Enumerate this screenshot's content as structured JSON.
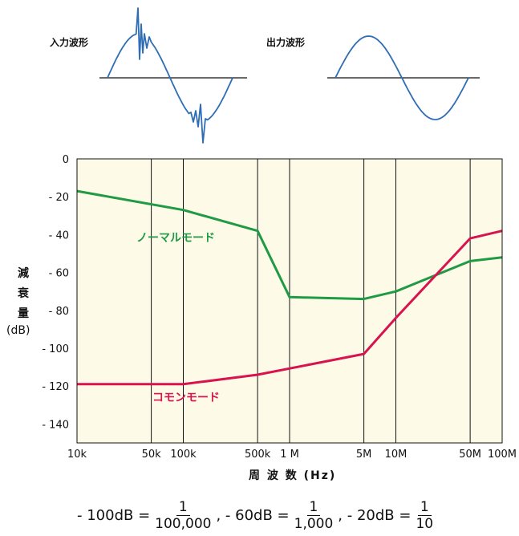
{
  "waveforms": {
    "input_label": "入力波形",
    "output_label": "出力波形"
  },
  "axis_labels": {
    "y_chars": [
      "減",
      "衰",
      "量"
    ],
    "y_unit": "(dB)",
    "x_title": "周 波 数 (Hz)"
  },
  "formula": {
    "items": [
      {
        "lhs": "- 100dB =",
        "num": "1",
        "den": "100,000"
      },
      {
        "lhs": ", - 60dB =",
        "num": "1",
        "den": "1,000"
      },
      {
        "lhs": ", - 20dB =",
        "num": "1",
        "den": "10"
      }
    ]
  },
  "colors": {
    "plot_bg": "#fdfbe8",
    "normal": "#1f9a45",
    "common": "#d8134e",
    "wave": "#2f6db5"
  },
  "chart_data": {
    "type": "line",
    "x_scale": "log",
    "xlim": [
      10000,
      100000000
    ],
    "ylim": [
      -150,
      0
    ],
    "grid": true,
    "x_ticks": [
      {
        "value": 10000,
        "label": "10k"
      },
      {
        "value": 50000,
        "label": "50k"
      },
      {
        "value": 100000,
        "label": "100k"
      },
      {
        "value": 500000,
        "label": "500k"
      },
      {
        "value": 1000000,
        "label": "1 M"
      },
      {
        "value": 5000000,
        "label": "5M"
      },
      {
        "value": 10000000,
        "label": "10M"
      },
      {
        "value": 50000000,
        "label": "50M"
      },
      {
        "value": 100000000,
        "label": "100M"
      }
    ],
    "y_ticks": [
      {
        "value": 0,
        "label": "0"
      },
      {
        "value": -20,
        "label": "- 20"
      },
      {
        "value": -40,
        "label": "- 40"
      },
      {
        "value": -60,
        "label": "- 60"
      },
      {
        "value": -80,
        "label": "- 80"
      },
      {
        "value": -100,
        "label": "- 100"
      },
      {
        "value": -120,
        "label": "- 120"
      },
      {
        "value": -140,
        "label": "- 140"
      }
    ],
    "series": [
      {
        "name": "ノーマルモード",
        "color": "#1f9a45",
        "points": [
          [
            10000,
            -17
          ],
          [
            100000,
            -27
          ],
          [
            500000,
            -38
          ],
          [
            1000000,
            -73
          ],
          [
            5000000,
            -74
          ],
          [
            10000000,
            -70
          ],
          [
            50000000,
            -54
          ],
          [
            100000000,
            -52
          ]
        ]
      },
      {
        "name": "コモンモード",
        "color": "#d8134e",
        "points": [
          [
            10000,
            -119
          ],
          [
            100000,
            -119
          ],
          [
            500000,
            -114
          ],
          [
            5000000,
            -103
          ],
          [
            10000000,
            -84
          ],
          [
            50000000,
            -42
          ],
          [
            100000000,
            -38
          ]
        ]
      }
    ]
  }
}
